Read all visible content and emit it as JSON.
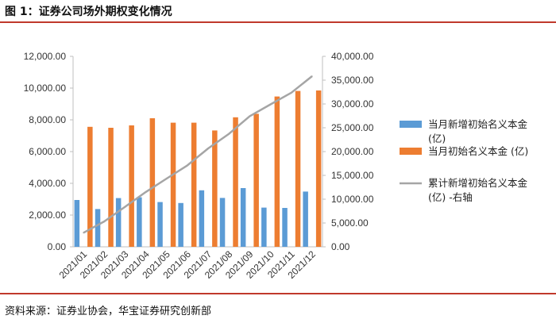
{
  "header": {
    "title": "图 1：证券公司场外期权变化情况"
  },
  "footer": {
    "source": "资料来源：证券业协会，华宝证券研究创新部"
  },
  "chart_data": {
    "type": "bar",
    "categories": [
      "2021/01",
      "2021/02",
      "2021/03",
      "2021/04",
      "2021/05",
      "2021/06",
      "2021/07",
      "2021/08",
      "2021/09",
      "2021/10",
      "2021/11",
      "2021/12"
    ],
    "series": [
      {
        "name": "当月新增初始名义本金(亿)",
        "type": "bar",
        "axis": "left",
        "color": "#5b9bd5",
        "values": [
          2950,
          2380,
          3070,
          3120,
          2820,
          2760,
          3560,
          3080,
          3700,
          2470,
          2450,
          3480
        ]
      },
      {
        "name": "当月初始名义本金 (亿)",
        "type": "bar",
        "axis": "left",
        "color": "#ed7d31",
        "values": [
          7560,
          7500,
          7650,
          8100,
          7820,
          7820,
          7330,
          8160,
          8380,
          9470,
          9820,
          9850
        ]
      },
      {
        "name": "累计新增初始名义本金(亿) -右轴",
        "type": "line",
        "axis": "right",
        "color": "#a5a5a5",
        "values": [
          2950,
          5330,
          8400,
          11520,
          14340,
          17100,
          20660,
          23740,
          27440,
          29910,
          32360,
          35840
        ]
      }
    ],
    "y_left": {
      "min": 0,
      "max": 12000,
      "step": 2000,
      "tick_labels": [
        "0.00",
        "2,000.00",
        "4,000.00",
        "6,000.00",
        "8,000.00",
        "10,000.00",
        "12,000.00"
      ]
    },
    "y_right": {
      "min": 0,
      "max": 40000,
      "step": 5000,
      "tick_labels": [
        "0.00",
        "5,000.00",
        "10,000.00",
        "15,000.00",
        "20,000.00",
        "25,000.00",
        "30,000.00",
        "35,000.00",
        "40,000.00"
      ]
    },
    "legend": {
      "position": "right",
      "items": [
        {
          "lines": [
            "当月新增初始名义本金",
            "(亿)"
          ]
        },
        {
          "lines": [
            "当月初始名义本金 (亿)"
          ]
        },
        {
          "lines": [
            "累计新增初始名义本金",
            "(亿) -右轴"
          ]
        }
      ]
    },
    "grid": false
  }
}
